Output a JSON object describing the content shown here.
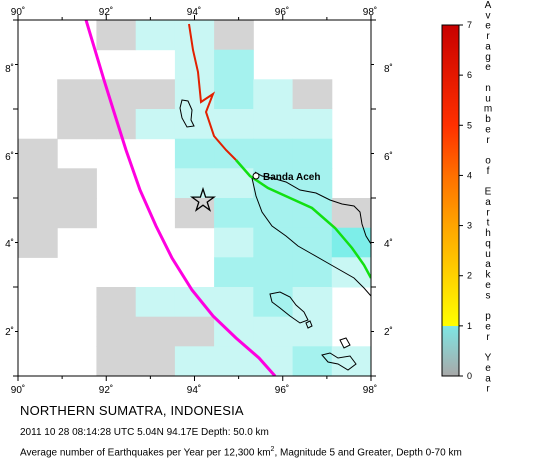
{
  "map": {
    "lon_range": [
      90,
      98
    ],
    "lat_range": [
      1,
      9
    ],
    "x_tick_labels": [
      "90˚",
      "92˚",
      "94˚",
      "96˚",
      "98˚"
    ],
    "y_tick_labels": [
      "2˚",
      "4˚",
      "6˚",
      "8˚"
    ],
    "city_label": "Banda Aceh",
    "epicenter_icon": "star-icon",
    "colors": {
      "background": "#ffffff",
      "grid_no_data": "#d4d4d4",
      "grid_low": "#c9f7f4",
      "grid_mid": "#a5f2ee",
      "grid_high": "#7deee9",
      "coastline": "#000000",
      "trench_line": "#ff00e0",
      "fault_red": "#e22000",
      "fault_green": "#12e012"
    }
  },
  "colorbar": {
    "title_chars": [
      "A",
      "v",
      "e",
      "r",
      "a",
      "g",
      "e",
      "",
      "n",
      "u",
      "m",
      "b",
      "e",
      "r",
      "",
      "o",
      "f",
      "",
      "E",
      "a",
      "r",
      "t",
      "h",
      "q",
      "u",
      "a",
      "k",
      "e",
      "s",
      "",
      "p",
      "e",
      "r",
      "",
      "Y",
      "e",
      "a",
      "r"
    ],
    "tick_labels": [
      "0",
      "1",
      "2",
      "3",
      "4",
      "5",
      "6",
      "7"
    ],
    "stops": [
      "#a8a8a8",
      "#7ee6e4",
      "#ffff00",
      "#ffd200",
      "#ffa400",
      "#ff7000",
      "#ff3000",
      "#c80000"
    ]
  },
  "footer": {
    "title": "NORTHERN SUMATRA, INDONESIA",
    "event_info": "2011 10 28 08:14:28 UTC 5.04N 94.17E Depth: 50.0 km",
    "caption_part1": "Average number of Earthquakes per Year per 12,300 km",
    "caption_sup": "2",
    "caption_part2": ", Magnitude 5 and Greater, Depth 0-70 km"
  }
}
